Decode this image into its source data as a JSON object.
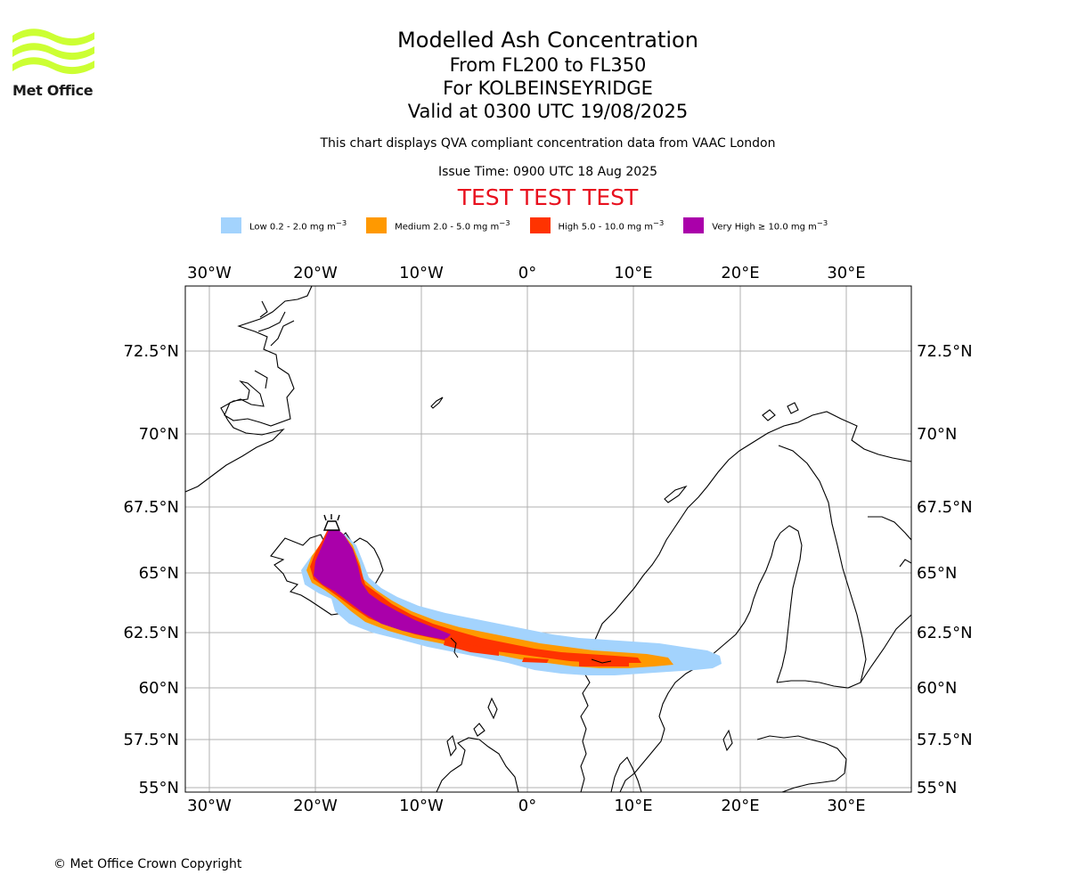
{
  "logo": {
    "text": "Met Office",
    "brand_color": "#ccff33"
  },
  "title": {
    "line1": "Modelled Ash Concentration",
    "line2": "From FL200 to FL350",
    "line3": "For KOLBEINSEYRIDGE",
    "line4": "Valid at 0300 UTC 19/08/2025"
  },
  "subtitle": "This chart displays QVA compliant concentration data from VAAC London",
  "issue_time": "Issue Time: 0900 UTC 18 Aug 2025",
  "test_banner": "TEST TEST TEST",
  "legend": [
    {
      "label": "Low 0.2 - 2.0 mg m",
      "color": "#a3d3fd"
    },
    {
      "label": "Medium 2.0 - 5.0 mg m",
      "color": "#ff9900"
    },
    {
      "label": "High 5.0 - 10.0 mg m",
      "color": "#ff3300"
    },
    {
      "label": "Very High  ≥  10.0 mg m",
      "color": "#aa00aa"
    }
  ],
  "legend_unit_exponent": "−3",
  "axes": {
    "lon_ticks": [
      "30°W",
      "20°W",
      "10°W",
      "0°",
      "10°E",
      "20°E",
      "30°E"
    ],
    "lat_ticks": [
      "72.5°N",
      "70°N",
      "67.5°N",
      "65°N",
      "62.5°N",
      "60°N",
      "57.5°N",
      "55°N"
    ]
  },
  "volcano": {
    "name": "KOLBEINSEYRIDGE",
    "icon": "volcano-icon"
  },
  "copyright": "© Met Office Crown Copyright"
}
